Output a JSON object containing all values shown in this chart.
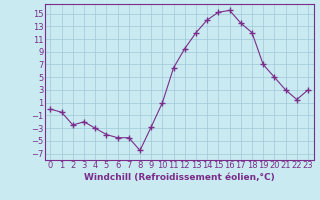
{
  "x": [
    0,
    1,
    2,
    3,
    4,
    5,
    6,
    7,
    8,
    9,
    10,
    11,
    12,
    13,
    14,
    15,
    16,
    17,
    18,
    19,
    20,
    21,
    22,
    23
  ],
  "y": [
    0,
    -0.5,
    -2.5,
    -2,
    -3,
    -4,
    -4.5,
    -4.5,
    -6.5,
    -2.8,
    1,
    6.5,
    9.5,
    12,
    14,
    15.2,
    15.5,
    13.5,
    12,
    7,
    5,
    3,
    1.5,
    3
  ],
  "line_color": "#7B2D8B",
  "marker": "+",
  "marker_size": 4,
  "bg_color": "#C8EAF0",
  "grid_color": "#A0C8D8",
  "xlabel": "Windchill (Refroidissement éolien,°C)",
  "xlim": [
    -0.5,
    23.5
  ],
  "ylim": [
    -8,
    16.5
  ],
  "yticks": [
    -7,
    -5,
    -3,
    -1,
    1,
    3,
    5,
    7,
    9,
    11,
    13,
    15
  ],
  "xticks": [
    0,
    1,
    2,
    3,
    4,
    5,
    6,
    7,
    8,
    9,
    10,
    11,
    12,
    13,
    14,
    15,
    16,
    17,
    18,
    19,
    20,
    21,
    22,
    23
  ],
  "axis_color": "#7B2D8B",
  "label_color": "#7B2D8B",
  "font_size": 6.0,
  "xlabel_font_size": 6.5
}
